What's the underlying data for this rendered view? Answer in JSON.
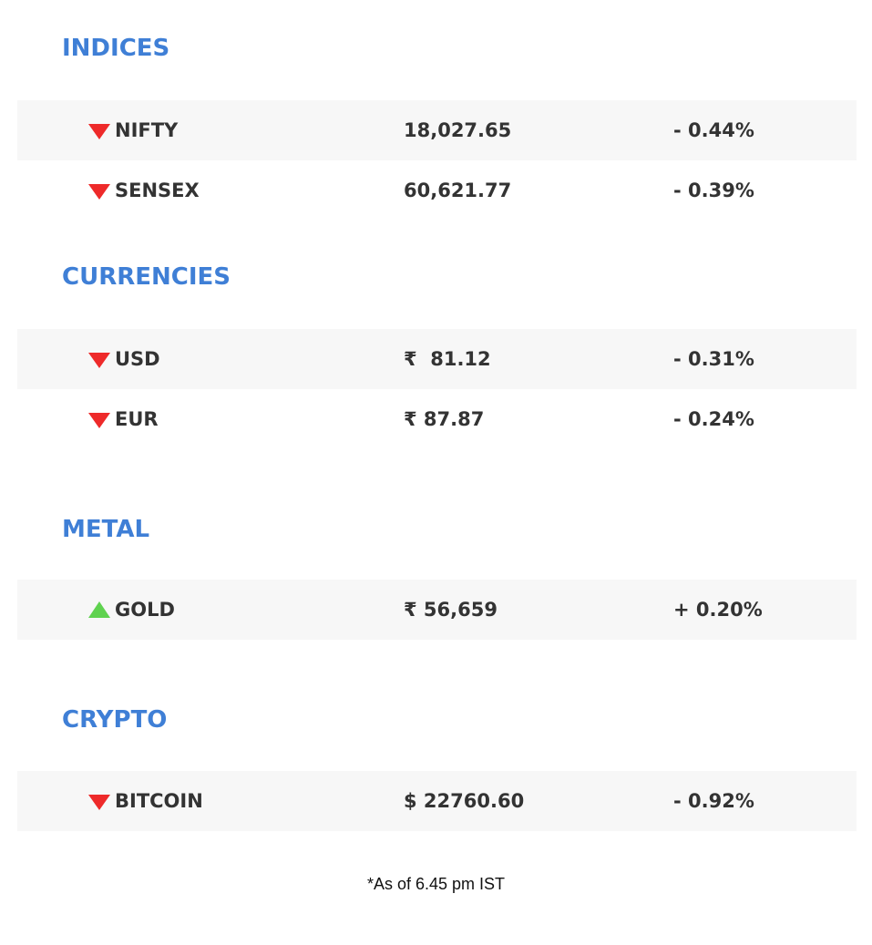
{
  "sections": [
    {
      "title": "INDICES",
      "rows": [
        {
          "direction": "down",
          "name": "NIFTY",
          "value": "18,027.65",
          "change": "- 0.44%"
        },
        {
          "direction": "down",
          "name": "SENSEX",
          "value": "60,621.77",
          "change": "- 0.39%"
        }
      ]
    },
    {
      "title": "CURRENCIES",
      "rows": [
        {
          "direction": "down",
          "name": "USD",
          "value": "₹  81.12",
          "change": "- 0.31%"
        },
        {
          "direction": "down",
          "name": "EUR",
          "value": "₹ 87.87",
          "change": "- 0.24%"
        }
      ]
    },
    {
      "title": "METAL",
      "rows": [
        {
          "direction": "up",
          "name": "GOLD",
          "value": "₹ 56,659",
          "change": "+ 0.20%"
        }
      ]
    },
    {
      "title": "CRYPTO",
      "rows": [
        {
          "direction": "down",
          "name": "BITCOIN",
          "value": "$ 22760.60",
          "change": "- 0.92%"
        }
      ]
    }
  ],
  "icons": {
    "down": "triangle-down-icon",
    "up": "triangle-up-icon"
  },
  "colors": {
    "heading": "#3f7fd6",
    "down": "#ee2a2a",
    "up": "#5fd24f",
    "row_shade": "#f7f7f7"
  },
  "footnote": "*As of 6.45 pm IST"
}
